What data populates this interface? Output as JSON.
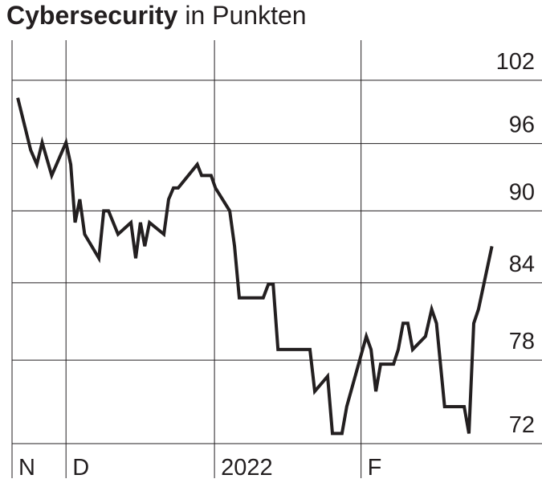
{
  "chart_data": {
    "type": "line",
    "title": "Cybersecurity",
    "subtitle": "in Punkten",
    "log_scale": true,
    "grid": true,
    "color": "#231f20",
    "x": [
      -10.1,
      -7.4,
      -6.1,
      -5.0,
      -3.0,
      0,
      1.0,
      1.9,
      2.9,
      3.9,
      6.9,
      7.9,
      8.9,
      10.9,
      13.6,
      14.6,
      15.6,
      16.5,
      17.5,
      20.5,
      21.5,
      22.5,
      23.5,
      27.5,
      28.4,
      30.4,
      31.3,
      34.3,
      35.3,
      36.3,
      41.3,
      42.4,
      43.4,
      44.4,
      51.1,
      52.1,
      54.8,
      55.8,
      57.8,
      58.8,
      62.9,
      63.9,
      64.9,
      65.9,
      68.6,
      69.6,
      70.6,
      71.6,
      72.6,
      75.3,
      76.6,
      77.6,
      79.3,
      83.4,
      84.4,
      85.4,
      86.4,
      89.2
    ],
    "series": [
      {
        "name": "Cybersecurity",
        "color": "#231f20",
        "values": [
          100.3,
          95.4,
          94.1,
          96.1,
          93.1,
          96.1,
          94.1,
          89.0,
          91.0,
          88.0,
          86.0,
          90.0,
          90.0,
          88.0,
          89.0,
          86.0,
          89.0,
          87.0,
          89.0,
          88.0,
          91.0,
          92.0,
          92.0,
          94.1,
          93.1,
          93.1,
          92.0,
          90.0,
          87.0,
          82.8,
          82.8,
          83.9,
          83.9,
          78.8,
          78.8,
          75.7,
          76.8,
          72.7,
          72.7,
          74.6,
          79.8,
          78.8,
          75.7,
          77.7,
          77.7,
          78.8,
          80.8,
          80.8,
          78.8,
          79.8,
          81.9,
          80.8,
          74.6,
          74.6,
          72.7,
          80.8,
          81.9,
          87.0
        ]
      }
    ],
    "xlim": [
      -11.3,
      99.7
    ],
    "xticks": [
      {
        "value": -11.3,
        "label": "N"
      },
      {
        "value": 0,
        "label": "D"
      },
      {
        "value": 31.1,
        "label": "2022"
      },
      {
        "value": 61.8,
        "label": "F"
      }
    ],
    "ylim": [
      72,
      106
    ],
    "yticks": [
      102,
      96,
      90,
      84,
      78,
      72
    ]
  }
}
